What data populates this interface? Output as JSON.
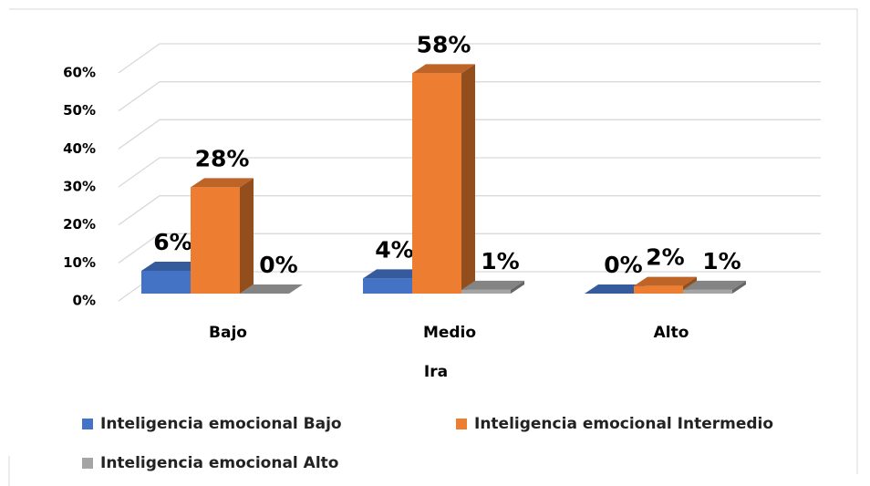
{
  "chart_data": {
    "type": "bar3d",
    "x_label": "Ira",
    "categories": [
      "Bajo",
      "Medio",
      "Alto"
    ],
    "series": [
      {
        "name": "Inteligencia emocional Bajo",
        "color": "#4472c4",
        "values": [
          6,
          4,
          0
        ],
        "value_labels": [
          "6%",
          "4%",
          "0%"
        ]
      },
      {
        "name": "Inteligencia emocional Intermedio",
        "color": "#ed7d31",
        "values": [
          28,
          58,
          2
        ],
        "value_labels": [
          "28%",
          "58%",
          "2%"
        ]
      },
      {
        "name": "Inteligencia emocional Alto",
        "color": "#a5a5a5",
        "values": [
          0,
          1,
          1
        ],
        "value_labels": [
          "0%",
          "1%",
          "1%"
        ]
      }
    ],
    "ylim": [
      0,
      60
    ],
    "yticks": [
      {
        "value": 0,
        "label": "0%"
      },
      {
        "value": 10,
        "label": "10%"
      },
      {
        "value": 20,
        "label": "20%"
      },
      {
        "value": 30,
        "label": "30%"
      },
      {
        "value": 40,
        "label": "40%"
      },
      {
        "value": 50,
        "label": "50%"
      },
      {
        "value": 60,
        "label": "60%"
      }
    ],
    "grid": true
  }
}
